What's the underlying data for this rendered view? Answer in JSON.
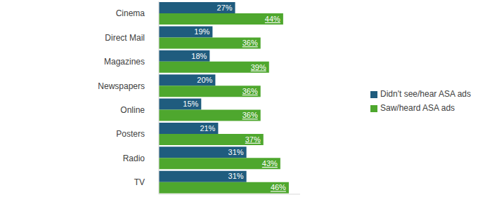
{
  "chart_data": {
    "type": "bar",
    "orientation": "horizontal",
    "categories": [
      "Cinema",
      "Direct Mail",
      "Magazines",
      "Newspapers",
      "Online",
      "Posters",
      "Radio",
      "TV"
    ],
    "series": [
      {
        "name": "Didn't see/hear ASA ads",
        "color": "#1f5c7e",
        "values": [
          27,
          19,
          18,
          20,
          15,
          21,
          31,
          31
        ],
        "value_labels": [
          "27%",
          "19%",
          "18%",
          "20%",
          "15%",
          "21%",
          "31%",
          "31%"
        ]
      },
      {
        "name": "Saw/heard ASA ads",
        "color": "#4ea72e",
        "values": [
          44,
          36,
          39,
          36,
          36,
          37,
          43,
          46
        ],
        "value_labels": [
          "44%",
          "36%",
          "39%",
          "36%",
          "36%",
          "37%",
          "43%",
          "46%"
        ]
      }
    ],
    "xlim": [
      0,
      50
    ],
    "tick_labels": "y",
    "legend": "right",
    "data_labels": true
  }
}
